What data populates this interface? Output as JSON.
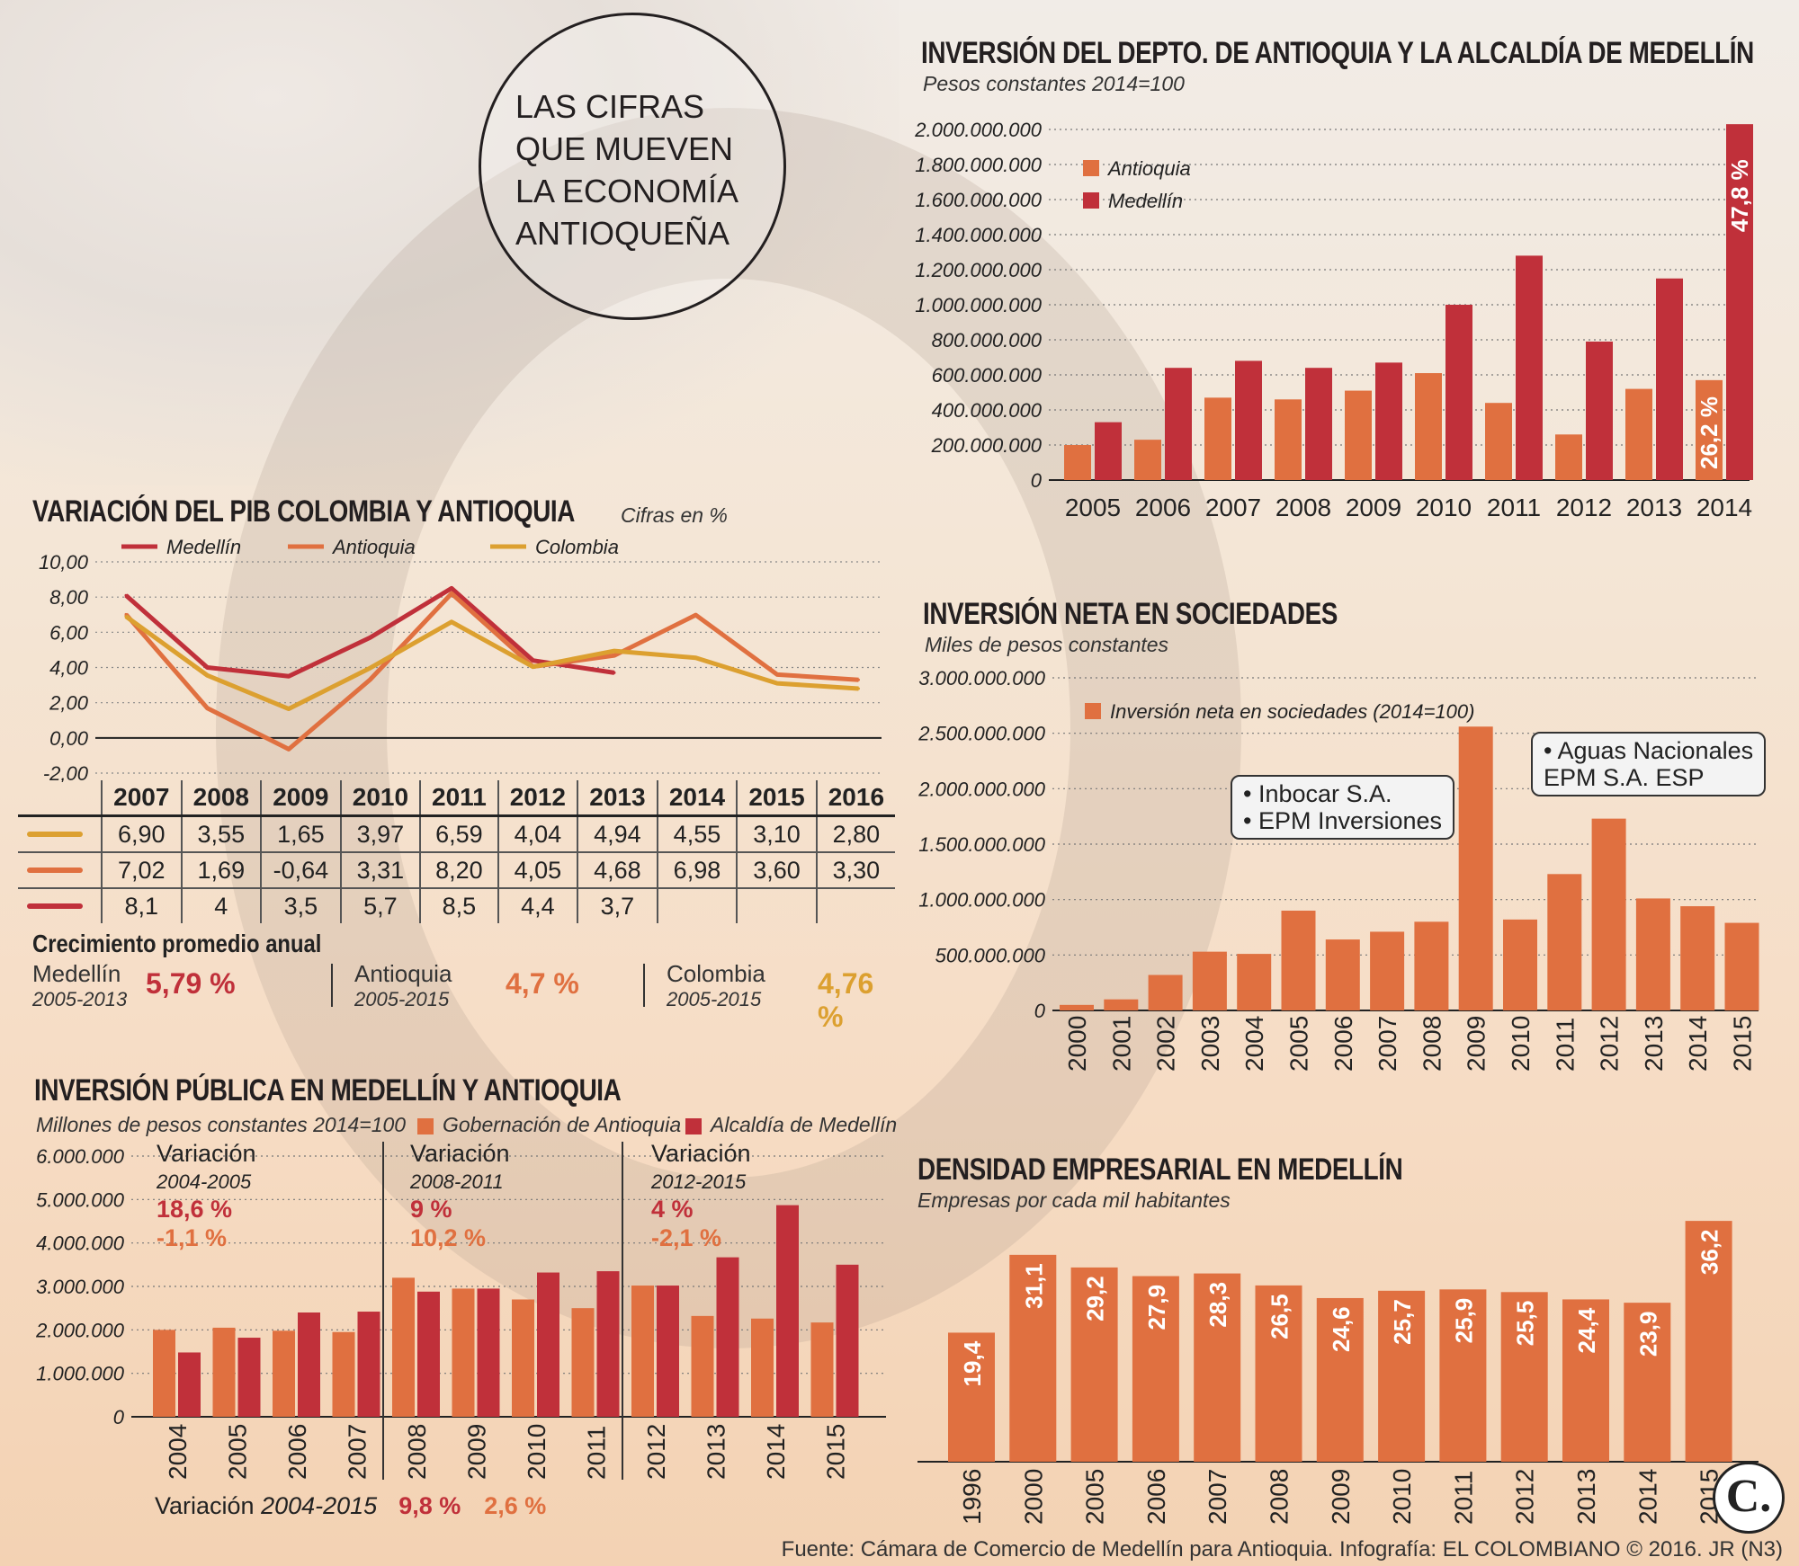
{
  "header": {
    "circle_lines": [
      "LAS CIFRAS",
      "QUE MUEVEN",
      "LA ECONOMÍA",
      "ANTIOQUEÑA"
    ]
  },
  "colors": {
    "medellin": "#c0303a",
    "antioquia": "#e07040",
    "colombia": "#dca030",
    "bar_orange": "#e07040",
    "bar_red": "#c0303a"
  },
  "footer": {
    "source": "Fuente: Cámara de Comercio de Medellín para Antioquia. Infografía: EL COLOMBIANO © 2016. JR (N3)",
    "logo": "C."
  },
  "chart_data": [
    {
      "id": "pib",
      "type": "line",
      "title": "VARIACIÓN DEL PIB COLOMBIA Y ANTIOQUIA",
      "subtitle": "Cifras en %",
      "x": [
        "2007",
        "2008",
        "2009",
        "2010",
        "2011",
        "2012",
        "2013",
        "2014",
        "2015",
        "2016"
      ],
      "ylim": [
        -2,
        10
      ],
      "yticks": [
        "10,00",
        "8,00",
        "6,00",
        "4,00",
        "2,00",
        "0,00",
        "-2,00"
      ],
      "series": [
        {
          "name": "Medellín",
          "values": [
            8.1,
            4,
            3.5,
            5.7,
            8.5,
            4.4,
            3.7,
            null,
            null,
            null
          ],
          "display": [
            "8,1",
            "4",
            "3,5",
            "5,7",
            "8,5",
            "4,4",
            "3,7",
            "",
            "",
            ""
          ]
        },
        {
          "name": "Antioquia",
          "values": [
            7.02,
            1.69,
            -0.64,
            3.31,
            8.2,
            4.05,
            4.68,
            6.98,
            3.6,
            3.3
          ],
          "display": [
            "7,02",
            "1,69",
            "-0,64",
            "3,31",
            "8,20",
            "4,05",
            "4,68",
            "6,98",
            "3,60",
            "3,30"
          ]
        },
        {
          "name": "Colombia",
          "values": [
            6.9,
            3.55,
            1.65,
            3.97,
            6.59,
            4.04,
            4.94,
            4.55,
            3.1,
            2.8
          ],
          "display": [
            "6,90",
            "3,55",
            "1,65",
            "3,97",
            "6,59",
            "4,04",
            "4,94",
            "4,55",
            "3,10",
            "2,80"
          ]
        }
      ],
      "growth": {
        "heading": "Crecimiento promedio anual",
        "items": [
          {
            "name": "Medellín",
            "period": "2005-2013",
            "value": "5,79 %"
          },
          {
            "name": "Antioquia",
            "period": "2005-2015",
            "value": "4,7 %"
          },
          {
            "name": "Colombia",
            "period": "2005-2015",
            "value": "4,76 %"
          }
        ]
      }
    },
    {
      "id": "inversion_depto",
      "type": "bar",
      "title": "INVERSIÓN DEL DEPTO. DE ANTIOQUIA Y LA ALCALDÍA DE MEDELLÍN",
      "subtitle": "Pesos constantes 2014=100",
      "categories": [
        "2005",
        "2006",
        "2007",
        "2008",
        "2009",
        "2010",
        "2011",
        "2012",
        "2013",
        "2014"
      ],
      "ylim": [
        0,
        2000000000
      ],
      "yticks": [
        "2.000.000.000",
        "1.800.000.000",
        "1.600.000.000",
        "1.400.000.000",
        "1.200.000.000",
        "1.000.000.000",
        "800.000.000",
        "600.000.000",
        "400.000.000",
        "200.000.000",
        "0"
      ],
      "series": [
        {
          "name": "Antioquia",
          "values": [
            200000000,
            230000000,
            470000000,
            460000000,
            510000000,
            610000000,
            440000000,
            260000000,
            520000000,
            570000000
          ]
        },
        {
          "name": "Medellín",
          "values": [
            330000000,
            640000000,
            680000000,
            640000000,
            670000000,
            1000000000,
            1280000000,
            790000000,
            1150000000,
            2030000000
          ]
        }
      ],
      "annotations": [
        "26,2 %",
        "47,8 %"
      ]
    },
    {
      "id": "inversion_neta",
      "type": "bar",
      "title": "INVERSIÓN NETA EN SOCIEDADES",
      "subtitle": "Miles de pesos constantes",
      "categories": [
        "2000",
        "2001",
        "2002",
        "2003",
        "2004",
        "2005",
        "2006",
        "2007",
        "2008",
        "2009",
        "2010",
        "2011",
        "2012",
        "2013",
        "2014",
        "2015"
      ],
      "ylim": [
        0,
        3000000000
      ],
      "yticks": [
        "3.000.000.000",
        "2.500.000.000",
        "2.000.000.000",
        "1.500.000.000",
        "1.000.000.000",
        "500.000.000",
        "0"
      ],
      "series": [
        {
          "name": "Inversión neta en sociedades (2014=100)",
          "values": [
            50000000,
            100000000,
            320000000,
            530000000,
            510000000,
            900000000,
            640000000,
            710000000,
            800000000,
            2560000000,
            820000000,
            1230000000,
            1730000000,
            1010000000,
            940000000,
            790000000
          ]
        }
      ],
      "callouts": [
        {
          "lines": [
            "• Inbocar S.A.",
            "• EPM Inversiones"
          ]
        },
        {
          "lines": [
            "• Aguas Nacionales",
            "EPM S.A. ESP"
          ]
        }
      ]
    },
    {
      "id": "inversion_publica",
      "type": "bar",
      "title": "INVERSIÓN PÚBLICA EN MEDELLÍN Y ANTIOQUIA",
      "subtitle": "Millones de pesos constantes 2014=100",
      "categories": [
        "2004",
        "2005",
        "2006",
        "2007",
        "2008",
        "2009",
        "2010",
        "2011",
        "2012",
        "2013",
        "2014",
        "2015"
      ],
      "ylim": [
        0,
        6000000
      ],
      "yticks": [
        "6.000.000",
        "5.000.000",
        "4.000.000",
        "3.000.000",
        "2.000.000",
        "1.000.000",
        "0"
      ],
      "series": [
        {
          "name": "Gobernación de Antioquia",
          "values": [
            2000000,
            2050000,
            1980000,
            1950000,
            3200000,
            2950000,
            2700000,
            2500000,
            3020000,
            2320000,
            2260000,
            2170000
          ]
        },
        {
          "name": "Alcaldía de Medellín",
          "values": [
            1480000,
            1820000,
            2400000,
            2420000,
            2880000,
            2950000,
            3320000,
            3350000,
            3020000,
            3670000,
            4870000,
            3500000
          ]
        }
      ],
      "variations": [
        {
          "label": "Variación",
          "period": "2004-2005",
          "v1": "18,6 %",
          "v2": "-1,1 %"
        },
        {
          "label": "Variación",
          "period": "2008-2011",
          "v1": "9 %",
          "v2": "10,2 %"
        },
        {
          "label": "Variación",
          "period": "2012-2015",
          "v1": "4 %",
          "v2": "-2,1 %"
        }
      ],
      "total_variation": {
        "label": "Variación",
        "period": "2004-2015",
        "v1": "9,8 %",
        "v2": "2,6 %"
      }
    },
    {
      "id": "densidad",
      "type": "bar",
      "title": "DENSIDAD EMPRESARIAL EN MEDELLÍN",
      "subtitle": "Empresas por cada mil habitantes",
      "categories": [
        "1996",
        "2000",
        "2005",
        "2006",
        "2007",
        "2008",
        "2009",
        "2010",
        "2011",
        "2012",
        "2013",
        "2014",
        "2015"
      ],
      "values": [
        19.4,
        31.1,
        29.2,
        27.9,
        28.3,
        26.5,
        24.6,
        25.7,
        25.9,
        25.5,
        24.4,
        23.9,
        36.2
      ],
      "labels": [
        "19,4",
        "31,1",
        "29,2",
        "27,9",
        "28,3",
        "26,5",
        "24,6",
        "25,7",
        "25,9",
        "25,5",
        "24,4",
        "23,9",
        "36,2"
      ]
    }
  ]
}
